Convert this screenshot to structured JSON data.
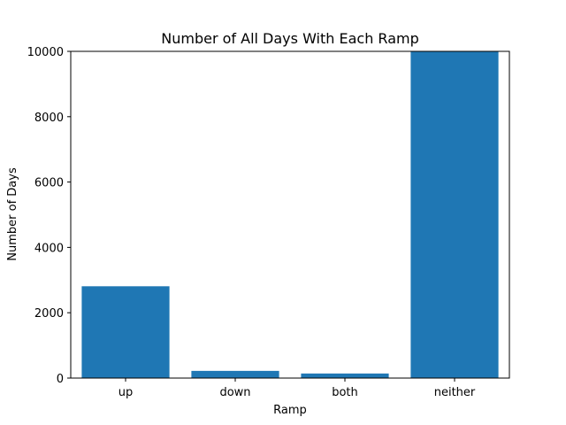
{
  "chart_data": {
    "type": "bar",
    "title": "Number of All Days With Each Ramp",
    "xlabel": "Ramp",
    "ylabel": "Number of Days",
    "categories": [
      "up",
      "down",
      "both",
      "neither"
    ],
    "values": [
      2810,
      220,
      140,
      9990
    ],
    "ylim": [
      0,
      10000
    ],
    "yticks": [
      0,
      2000,
      4000,
      6000,
      8000,
      10000
    ],
    "ytick_labels": [
      "0",
      "2000",
      "4000",
      "6000",
      "8000",
      "10000"
    ],
    "bar_color": "#1f77b4",
    "grid": false,
    "legend": "none"
  }
}
